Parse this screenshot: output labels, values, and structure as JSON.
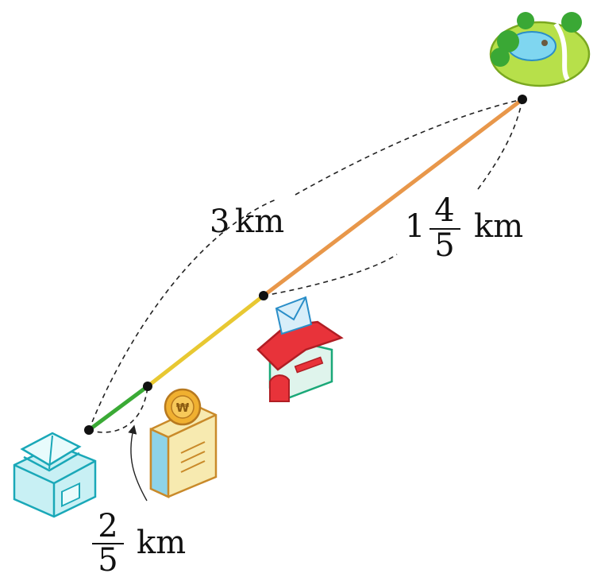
{
  "labels": {
    "total": {
      "number": "3",
      "unit": "km"
    },
    "right_segment": {
      "whole": "1",
      "numerator": "4",
      "denominator": "5",
      "unit": "km"
    },
    "left_segment": {
      "numerator": "2",
      "denominator": "5",
      "unit": "km"
    }
  },
  "icons": [
    "library-icon",
    "bank-icon",
    "post-office-icon",
    "park-icon"
  ],
  "colors": {
    "segment_green": "#3aaa35",
    "segment_yellow": "#e8c832",
    "segment_orange": "#e8974a",
    "dot": "#111111",
    "dash": "#222222"
  }
}
